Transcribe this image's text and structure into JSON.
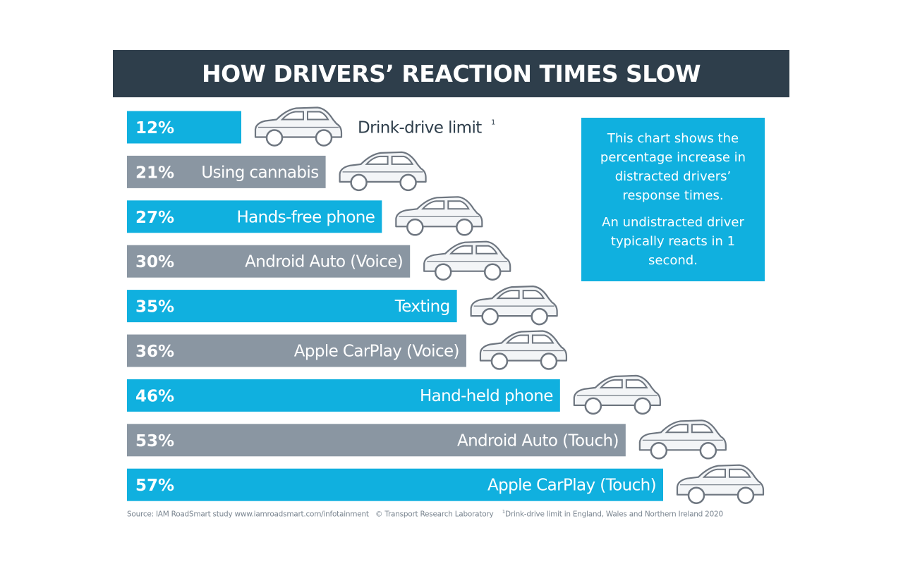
{
  "chart_data": {
    "type": "bar",
    "orientation": "horizontal",
    "title": "HOW DRIVERS’ REACTION TIMES SLOW",
    "xlim": [
      0,
      57
    ],
    "categories": [
      "Drink-drive limit",
      "Using cannabis",
      "Hands-free phone",
      "Android Auto (Voice)",
      "Texting",
      "Apple CarPlay (Voice)",
      "Hand-held phone",
      "Android Auto (Touch)",
      "Apple CarPlay (Touch)"
    ],
    "values": [
      12,
      21,
      27,
      30,
      35,
      36,
      46,
      53,
      57
    ],
    "value_labels": [
      "12%",
      "21%",
      "27%",
      "30%",
      "35%",
      "36%",
      "46%",
      "53%",
      "57%"
    ],
    "label_superscripts": [
      "1",
      "",
      "",
      "",
      "",
      "",
      "",
      "",
      ""
    ],
    "bar_colors": [
      "#10b0df",
      "#8a96a2",
      "#10b0df",
      "#8a96a2",
      "#10b0df",
      "#8a96a2",
      "#10b0df",
      "#8a96a2",
      "#10b0df"
    ],
    "marker_icon": "car-icon",
    "grid": false
  },
  "info_box": {
    "paragraph1": "This chart shows the percentage increase in distracted drivers’ response times.",
    "paragraph2": "An undistracted driver typically reacts in 1 second."
  },
  "footer": {
    "source": "Source: IAM RoadSmart study www.iamroadsmart.com/infotainment",
    "credit": "© Transport Research Laboratory",
    "note_marker": "1",
    "note": "Drink-drive limit in England, Wales and Northern Ireland 2020"
  },
  "colors": {
    "title_bg": "#2e3e4b",
    "accent_blue": "#10b0df",
    "bar_grey": "#8a96a2",
    "car_fill": "#f3f5f7",
    "car_stroke": "#6e7680",
    "label_dark": "#2e3e4b"
  }
}
